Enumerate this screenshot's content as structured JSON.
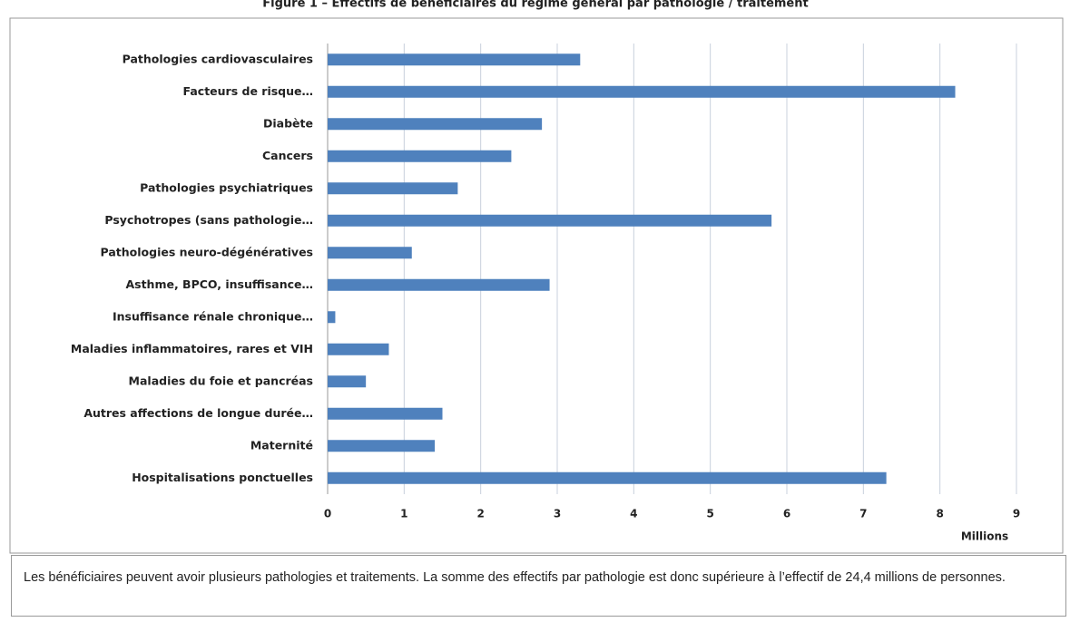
{
  "chart_data": {
    "type": "barh",
    "title": "Figure 1 – Effectifs de bénéficiaires du régime général par pathologie / traitement",
    "categories": [
      "Pathologies cardiovasculaires",
      "Facteurs de risque…",
      "Diabète",
      "Cancers",
      "Pathologies psychiatriques",
      "Psychotropes (sans pathologie…",
      "Pathologies neuro-dégénératives",
      "Asthme, BPCO, insuffisance…",
      "Insuffisance rénale chronique…",
      "Maladies inflammatoires, rares et VIH",
      "Maladies du foie et pancréas",
      "Autres affections de longue durée…",
      "Maternité",
      "Hospitalisations ponctuelles"
    ],
    "values": [
      3.3,
      8.2,
      2.8,
      2.4,
      1.7,
      5.8,
      1.1,
      2.9,
      0.1,
      0.8,
      0.5,
      1.5,
      1.4,
      7.3
    ],
    "color": "#4f81bd",
    "xlim": [
      0,
      9
    ],
    "xticks": [
      0,
      1,
      2,
      3,
      4,
      5,
      6,
      7,
      8,
      9
    ],
    "xlabel": "Millions",
    "grid": true
  },
  "note": "Les bénéficiaires peuvent avoir plusieurs pathologies et traitements. La somme des effectifs par pathologie est donc supérieure à l’effectif de 24,4 millions de personnes."
}
